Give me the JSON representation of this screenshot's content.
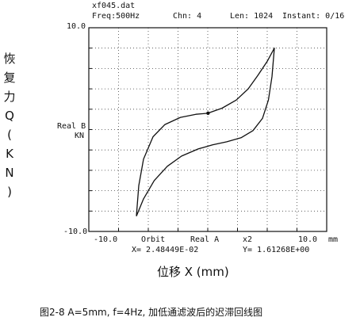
{
  "header": {
    "file": "xf045.dat",
    "freq": "Freq:500Hz",
    "chn": "Chn: 4",
    "len": "Len: 1024",
    "instant": "Instant:  0/16"
  },
  "left_labels": {
    "real_b": "Real B",
    "kn": "KN",
    "ylabel_chars": [
      "恢",
      "复",
      "力",
      "Q",
      "(",
      "K",
      "N",
      ")"
    ]
  },
  "bottom_labels": {
    "orbit": "Orbit",
    "real_a": "Real A",
    "x2": "x2",
    "mm": "mm",
    "cursor_x": "X= 2.48449E-02",
    "cursor_y": "Y= 1.61268E+00",
    "xlabel": "位移  X (mm)"
  },
  "caption": "图2-8  A=5mm, f=4Hz, 加低通滤波后的迟滞回线图",
  "chart_data": {
    "type": "line",
    "xlim": [
      -10,
      10
    ],
    "ylim": [
      -10,
      10
    ],
    "x_tick_labels": [
      "-10.0",
      "10.0"
    ],
    "y_tick_labels": [
      "10.0",
      "-10.0"
    ],
    "grid": true,
    "cursor_point": {
      "x": 0.0248449,
      "y": 1.61268
    },
    "series": [
      {
        "values": [
          {
            "x": -6.0,
            "y": -8.5
          },
          {
            "x": -5.8,
            "y": -5.5
          },
          {
            "x": -5.4,
            "y": -2.9
          },
          {
            "x": -4.6,
            "y": -0.7
          },
          {
            "x": -3.6,
            "y": 0.5
          },
          {
            "x": -2.3,
            "y": 1.2
          },
          {
            "x": -1.0,
            "y": 1.5
          },
          {
            "x": 0.0,
            "y": 1.6
          },
          {
            "x": 1.2,
            "y": 2.1
          },
          {
            "x": 2.4,
            "y": 2.9
          },
          {
            "x": 3.4,
            "y": 4.0
          },
          {
            "x": 4.2,
            "y": 5.3
          },
          {
            "x": 5.0,
            "y": 6.7
          },
          {
            "x": 5.6,
            "y": 8.0
          },
          {
            "x": 5.4,
            "y": 5.2
          },
          {
            "x": 5.1,
            "y": 2.9
          },
          {
            "x": 4.6,
            "y": 1.1
          },
          {
            "x": 3.8,
            "y": -0.1
          },
          {
            "x": 2.8,
            "y": -0.8
          },
          {
            "x": 1.6,
            "y": -1.2
          },
          {
            "x": 0.4,
            "y": -1.5
          },
          {
            "x": -0.8,
            "y": -1.9
          },
          {
            "x": -2.2,
            "y": -2.6
          },
          {
            "x": -3.4,
            "y": -3.6
          },
          {
            "x": -4.5,
            "y": -5.0
          },
          {
            "x": -5.4,
            "y": -6.8
          },
          {
            "x": -6.0,
            "y": -8.5
          }
        ]
      }
    ]
  }
}
